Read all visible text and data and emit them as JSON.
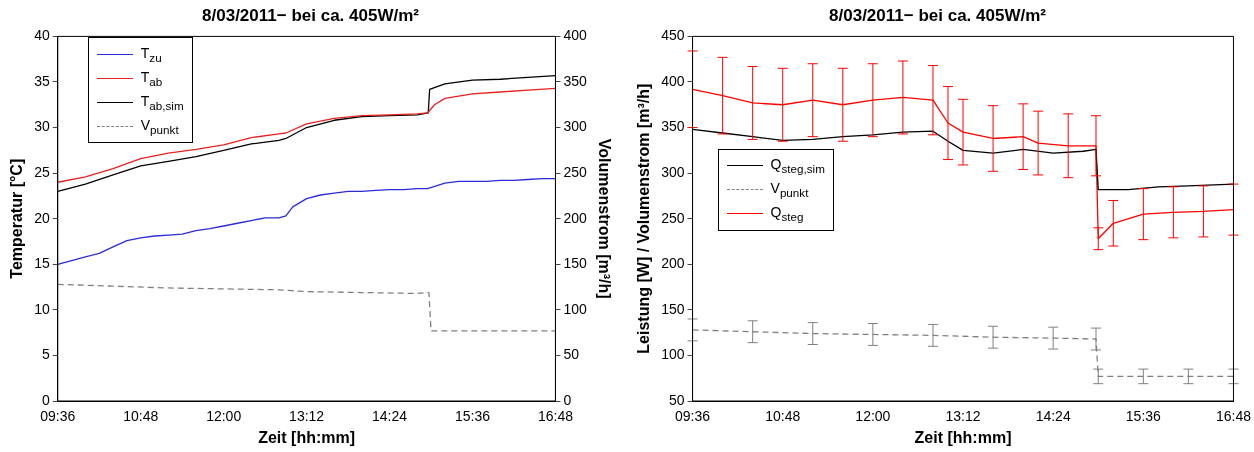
{
  "chart_data": [
    {
      "type": "line",
      "title": "8/03/2011− bei ca. 405W/m²",
      "xlabel": "Zeit [hh:mm]",
      "ylabel": "Temperatur [°C]",
      "y2label": "Volumenstrom [m³/h]",
      "xlim": [
        9.6,
        16.8
      ],
      "xticks": [
        {
          "value": 9.6,
          "label": "09:36"
        },
        {
          "value": 10.8,
          "label": "10:48"
        },
        {
          "value": 12,
          "label": "12:00"
        },
        {
          "value": 13.2,
          "label": "13:12"
        },
        {
          "value": 14.4,
          "label": "14:24"
        },
        {
          "value": 15.6,
          "label": "15:36"
        },
        {
          "value": 16.8,
          "label": "16:48"
        }
      ],
      "ylim": [
        0,
        40
      ],
      "yticks": [
        0,
        5,
        10,
        15,
        20,
        25,
        30,
        35,
        40
      ],
      "y2lim": [
        0,
        400
      ],
      "y2ticks": [
        0,
        50,
        100,
        150,
        200,
        250,
        300,
        350,
        400
      ],
      "grid": false,
      "legend": "top left",
      "marker": "none",
      "series": [
        {
          "name": "T$_{zu}$",
          "color": "#2b2bd9",
          "x": [
            9.6,
            9.8,
            10,
            10.2,
            10.4,
            10.6,
            10.8,
            11,
            11.2,
            11.4,
            11.6,
            11.8,
            12,
            12.2,
            12.4,
            12.6,
            12.8,
            12.9,
            13,
            13.2,
            13.4,
            13.6,
            13.8,
            14,
            14.2,
            14.4,
            14.6,
            14.8,
            14.95,
            15.2,
            15.4,
            15.6,
            15.8,
            16,
            16.2,
            16.4,
            16.6,
            16.8
          ],
          "values": [
            15.0,
            15.4,
            15.8,
            16.2,
            16.9,
            17.6,
            17.9,
            18.1,
            18.2,
            18.3,
            18.7,
            18.9,
            19.2,
            19.5,
            19.8,
            20.1,
            20.1,
            20.3,
            21.3,
            22.2,
            22.6,
            22.8,
            23.0,
            23.0,
            23.1,
            23.2,
            23.2,
            23.3,
            23.3,
            23.9,
            24.1,
            24.1,
            24.1,
            24.2,
            24.2,
            24.3,
            24.4,
            24.4
          ]
        },
        {
          "name": "T$_{ab}$",
          "color": "#e82020",
          "x": [
            9.6,
            10,
            10.4,
            10.8,
            11.2,
            11.6,
            12,
            12.4,
            12.8,
            12.9,
            13.2,
            13.6,
            14,
            14.4,
            14.8,
            14.95,
            15.05,
            15.2,
            15.6,
            16,
            16.4,
            16.8
          ],
          "values": [
            24.0,
            24.6,
            25.5,
            26.6,
            27.2,
            27.6,
            28.1,
            28.9,
            29.3,
            29.4,
            30.4,
            31.0,
            31.3,
            31.4,
            31.5,
            31.6,
            32.5,
            33.2,
            33.7,
            33.9,
            34.1,
            34.3
          ]
        },
        {
          "name": "T$_{ab,sim}$",
          "color": "#000000",
          "x": [
            9.6,
            10,
            10.4,
            10.8,
            11.2,
            11.6,
            12,
            12.4,
            12.8,
            12.9,
            13.2,
            13.6,
            14,
            14.4,
            14.8,
            14.96,
            14.98,
            15.2,
            15.6,
            16,
            16.4,
            16.8
          ],
          "values": [
            23.0,
            23.8,
            24.8,
            25.8,
            26.3,
            26.8,
            27.5,
            28.2,
            28.6,
            28.8,
            30.0,
            30.8,
            31.2,
            31.3,
            31.4,
            31.6,
            34.2,
            34.8,
            35.2,
            35.3,
            35.5,
            35.7
          ]
        },
        {
          "name": "V$_{punkt}$",
          "color": "#808080",
          "axis": "y2",
          "line_style": "dashed",
          "x": [
            9.6,
            10.4,
            11.2,
            12,
            12.8,
            13.2,
            14,
            14.8,
            14.97,
            15,
            15.6,
            16.2,
            16.8
          ],
          "values": [
            128,
            126,
            124,
            123,
            122,
            120,
            119,
            118,
            119,
            77,
            77,
            77,
            77
          ]
        }
      ]
    },
    {
      "type": "line",
      "title": "8/03/2011− bei ca. 405W/m²",
      "xlabel": "Zeit [hh:mm]",
      "ylabel": "Leistung [W] / Volumenstrom [m³/h]",
      "xlim": [
        9.6,
        16.8
      ],
      "xticks": [
        {
          "value": 9.6,
          "label": "09:36"
        },
        {
          "value": 10.8,
          "label": "10:48"
        },
        {
          "value": 12,
          "label": "12:00"
        },
        {
          "value": 13.2,
          "label": "13:12"
        },
        {
          "value": 14.4,
          "label": "14:24"
        },
        {
          "value": 15.6,
          "label": "15:36"
        },
        {
          "value": 16.8,
          "label": "16:48"
        }
      ],
      "ylim": [
        50,
        450
      ],
      "yticks": [
        50,
        100,
        150,
        200,
        250,
        300,
        350,
        400,
        450
      ],
      "grid": false,
      "legend": "left",
      "marker": "none",
      "series": [
        {
          "name": "Q$_{steg,sim}$",
          "color": "#000000",
          "x": [
            9.6,
            10,
            10.4,
            10.8,
            11.2,
            11.6,
            12,
            12.4,
            12.8,
            13,
            13.2,
            13.6,
            14,
            14.4,
            14.8,
            14.97,
            15,
            15.4,
            15.8,
            16.2,
            16.8
          ],
          "values": [
            348,
            344,
            340,
            336,
            337,
            340,
            342,
            345,
            346,
            335,
            325,
            322,
            326,
            322,
            324,
            326,
            282,
            282,
            285,
            286,
            288
          ]
        },
        {
          "name": "V$_{punkt}$",
          "color": "#808080",
          "line_style": "dashed",
          "x": [
            9.6,
            10.4,
            11.2,
            12,
            12.8,
            13.6,
            14.4,
            14.97,
            15,
            15.6,
            16.2,
            16.8
          ],
          "values": [
            128,
            126,
            124,
            123,
            122,
            120,
            119,
            118,
            77,
            77,
            77,
            77
          ],
          "errors": [
            12,
            12,
            12,
            12,
            12,
            12,
            12,
            12,
            8,
            8,
            8,
            8
          ]
        },
        {
          "name": "Q$_{steg}$",
          "color": "#ff0000",
          "x": [
            9.6,
            10,
            10.4,
            10.8,
            11.2,
            11.6,
            12,
            12.4,
            12.8,
            13,
            13.2,
            13.6,
            14,
            14.2,
            14.6,
            14.97,
            15,
            15.2,
            15.6,
            16,
            16.4,
            16.8
          ],
          "values": [
            392,
            385,
            377,
            375,
            380,
            375,
            380,
            383,
            380,
            355,
            345,
            338,
            340,
            333,
            330,
            330,
            228,
            245,
            255,
            257,
            258,
            260
          ],
          "errors": [
            42,
            42,
            40,
            40,
            40,
            40,
            40,
            40,
            38,
            40,
            36,
            36,
            36,
            35,
            35,
            33,
            12,
            25,
            28,
            28,
            28,
            28
          ]
        }
      ]
    }
  ]
}
